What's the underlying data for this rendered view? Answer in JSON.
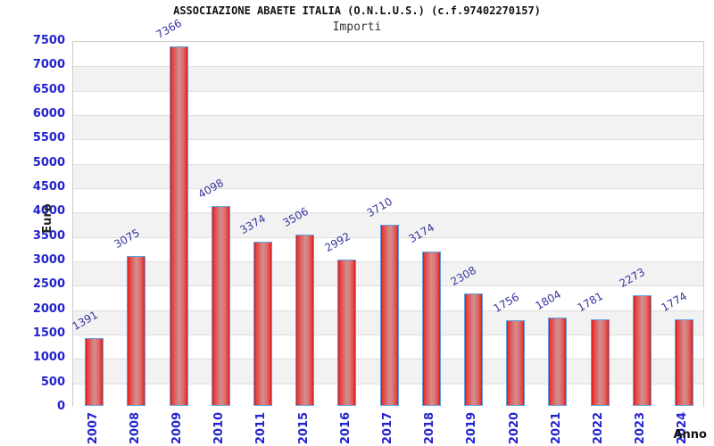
{
  "chart_data": {
    "type": "bar",
    "title": "ASSOCIAZIONE ABAETE ITALIA (O.N.L.U.S.) (c.f.97402270157)",
    "subtitle": "Importi",
    "xlabel": "Anno",
    "ylabel": "Euro",
    "categories": [
      "2007",
      "2008",
      "2009",
      "2010",
      "2011",
      "2015",
      "2016",
      "2017",
      "2018",
      "2019",
      "2020",
      "2021",
      "2022",
      "2023",
      "2024"
    ],
    "values": [
      1391,
      3075,
      7366,
      4098,
      3374,
      3506,
      2992,
      3710,
      3174,
      2308,
      1756,
      1804,
      1781,
      2273,
      1774
    ],
    "ylim": [
      0,
      7500
    ],
    "ytick_step": 500,
    "grid": "horizontal-bands-alternating",
    "legend": "none",
    "colors": {
      "bar_fill_edge": "#d41717",
      "bar_fill_mid": "#d09090",
      "bar_border": "#5da2e0",
      "tick_label": "#2323cc",
      "value_label": "#34349c",
      "band_gray": "#f2f2f2",
      "grid_line": "#dddddd",
      "plot_border": "#cccccc",
      "title": "#111111",
      "subtitle": "#333333",
      "axis_title": "#222222"
    }
  }
}
